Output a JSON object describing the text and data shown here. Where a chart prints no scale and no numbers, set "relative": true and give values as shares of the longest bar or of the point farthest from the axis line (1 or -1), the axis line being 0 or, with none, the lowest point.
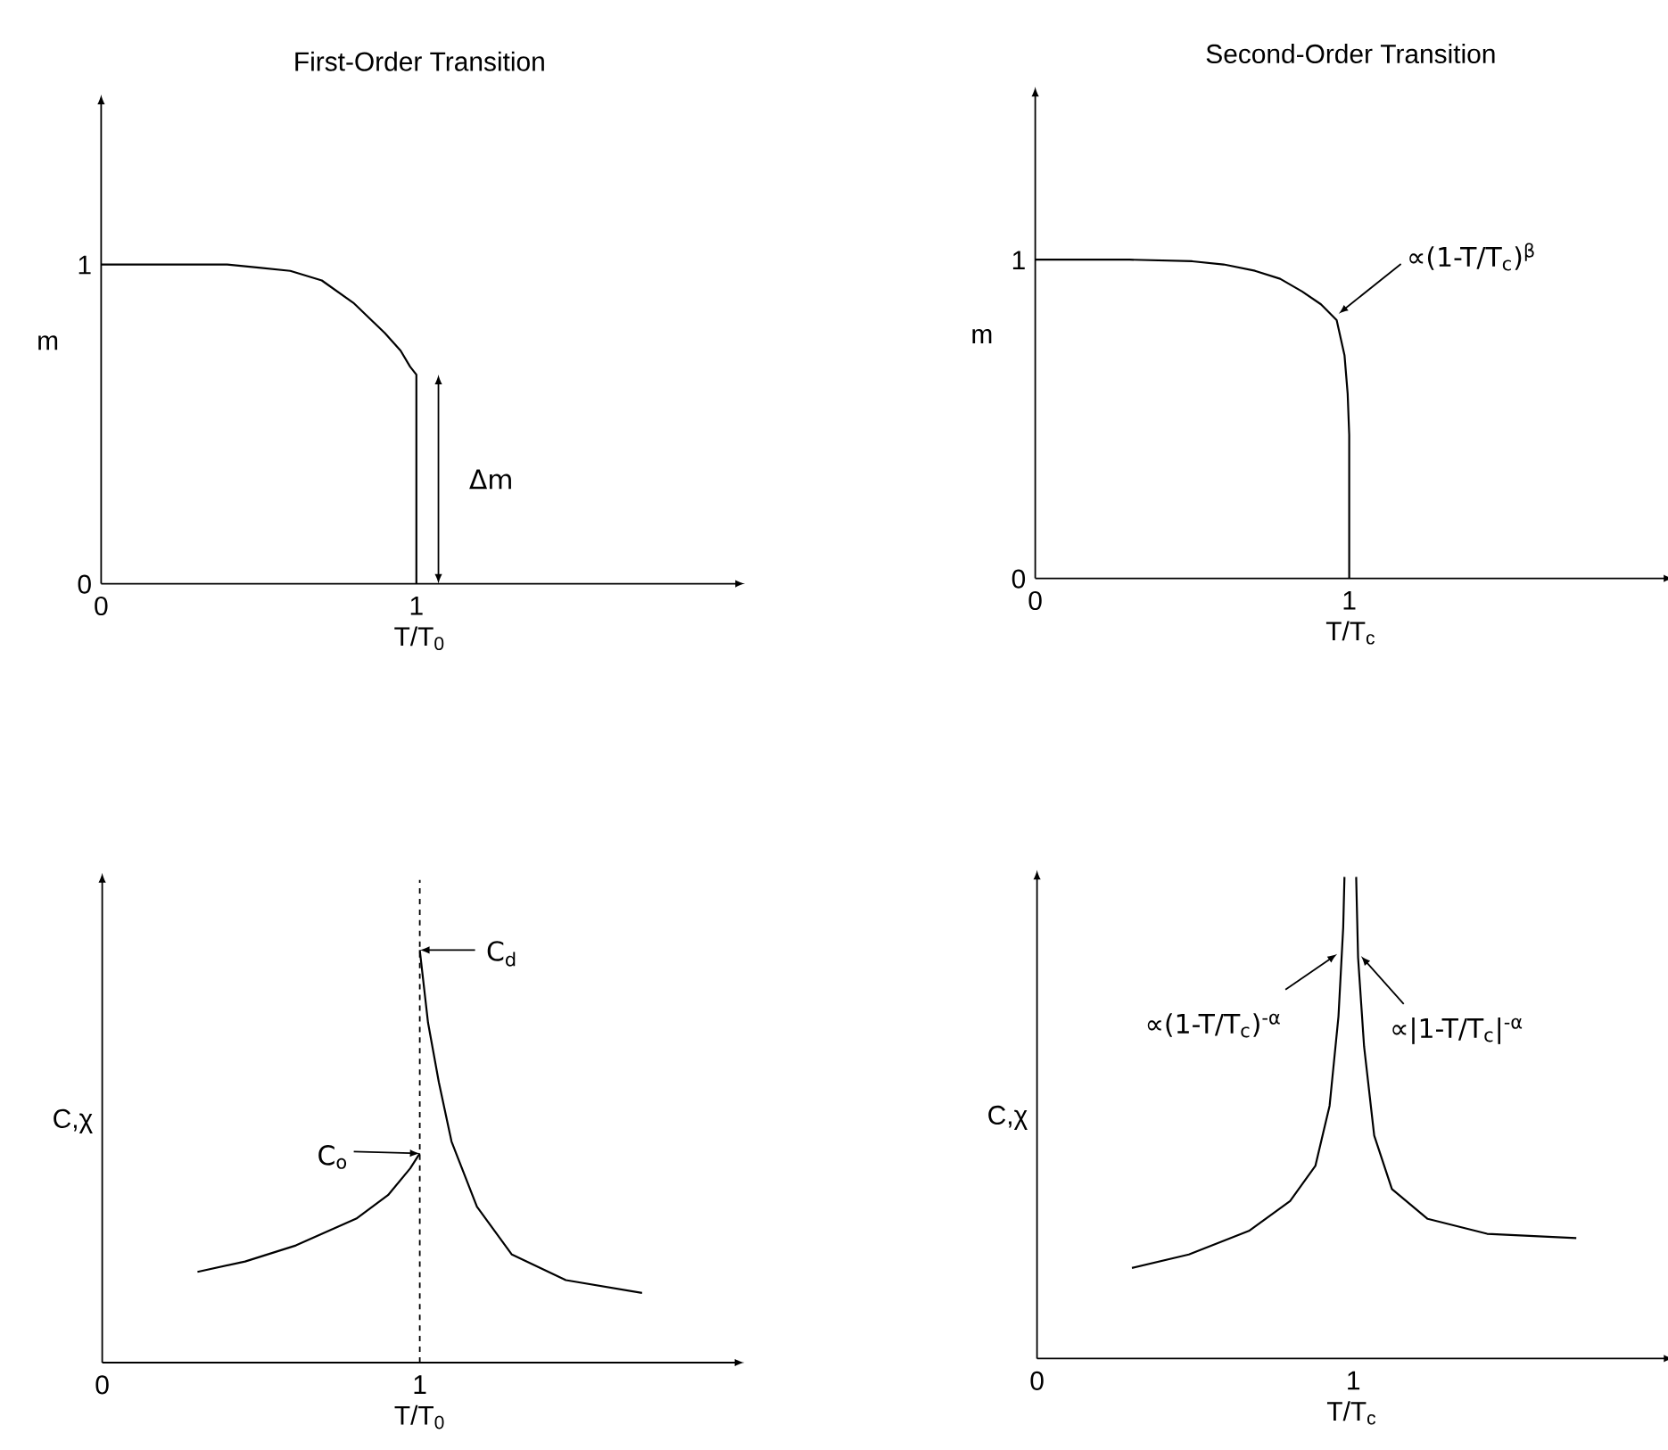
{
  "chart_data": [
    {
      "type": "line",
      "title": "First-Order Transition",
      "xlabel": "T/T$_{0}$",
      "ylabel": "m",
      "xlim": [
        0,
        2.02
      ],
      "ylim": [
        0,
        1.51
      ],
      "xticks": [
        0,
        1
      ],
      "yticks": [
        0,
        1
      ],
      "series": [
        {
          "color": "#000000",
          "x": [
            0,
            0.2,
            0.4,
            0.5,
            0.6,
            0.7,
            0.8,
            0.9,
            0.95,
            0.98,
            1,
            1
          ],
          "values": [
            1,
            1,
            1,
            0.99,
            0.98,
            0.95,
            0.88,
            0.785,
            0.73,
            0.68,
            0.655,
            0
          ]
        }
      ],
      "annotations": [
        "Δm"
      ]
    },
    {
      "type": "line",
      "title": "Second-Order Transition",
      "xlabel": "T/T$_{c}$",
      "ylabel": "m",
      "xlim": [
        0,
        2.01
      ],
      "ylim": [
        0,
        1.52
      ],
      "xticks": [
        0,
        1
      ],
      "yticks": [
        0,
        1
      ],
      "series": [
        {
          "color": "#000000",
          "x": [
            0,
            0.3,
            0.5,
            0.6,
            0.7,
            0.78,
            0.85,
            0.91,
            0.96,
            0.985,
            0.995,
            1,
            1
          ],
          "values": [
            1,
            1,
            0.995,
            0.985,
            0.965,
            0.94,
            0.9,
            0.86,
            0.81,
            0.7,
            0.58,
            0.45,
            0
          ]
        }
      ],
      "annotations": [
        {
          "text": "∝(1-T/T$_{c}$)$^{β}$",
          "x": 0.966,
          "y": 0.83
        }
      ]
    },
    {
      "type": "line",
      "relative": true,
      "xlabel": "T/T$_{0}$",
      "ylabel": "C,χ",
      "xlim": [
        0,
        2.0
      ],
      "xticks": [
        0,
        1
      ],
      "series": [
        {
          "color": "#000000",
          "x": [
            0.3,
            0.45,
            0.61,
            0.8,
            0.9,
            0.97,
            1
          ],
          "values": [
            0.22,
            0.245,
            0.284,
            0.349,
            0.406,
            0.471,
            0.507
          ]
        },
        {
          "color": "#000000",
          "x": [
            1,
            1.026,
            1.06,
            1.1,
            1.18,
            1.29,
            1.46,
            1.7
          ],
          "values": [
            1,
            0.824,
            0.68,
            0.536,
            0.378,
            0.262,
            0.2,
            0.169
          ]
        }
      ],
      "ref_lines": [
        {
          "axis": "x",
          "value": 1,
          "line_style": "dashed"
        }
      ],
      "annotations": [
        {
          "text": "C$_{d}$",
          "x": 1,
          "y": 1
        },
        {
          "text": "C$_{o}$",
          "x": 1,
          "y": 0.507
        }
      ]
    },
    {
      "type": "line",
      "relative": true,
      "xlabel": "T/T$_{c}$",
      "ylabel": "C,χ",
      "xlim": [
        0,
        1.99
      ],
      "xticks": [
        0,
        1
      ],
      "series": [
        {
          "color": "#000000",
          "x": [
            0.3,
            0.48,
            0.67,
            0.8,
            0.88,
            0.925,
            0.953,
            0.968,
            0.972
          ],
          "values": [
            0.188,
            0.216,
            0.265,
            0.327,
            0.4,
            0.525,
            0.71,
            0.895,
            1
          ]
        },
        {
          "color": "#000000",
          "x": [
            1.009,
            1.015,
            1.034,
            1.066,
            1.122,
            1.235,
            1.423,
            1.705
          ],
          "values": [
            1,
            0.833,
            0.648,
            0.463,
            0.352,
            0.29,
            0.259,
            0.25
          ]
        }
      ],
      "annotations": [
        {
          "text": "∝(1-T/T$_{c}$)$^{-α}$",
          "x": 0.949,
          "y": 0.84
        },
        {
          "text": "∝|1-T/T$_{c}$|$^{-α}$",
          "x": 1.024,
          "y": 0.836
        }
      ]
    }
  ]
}
